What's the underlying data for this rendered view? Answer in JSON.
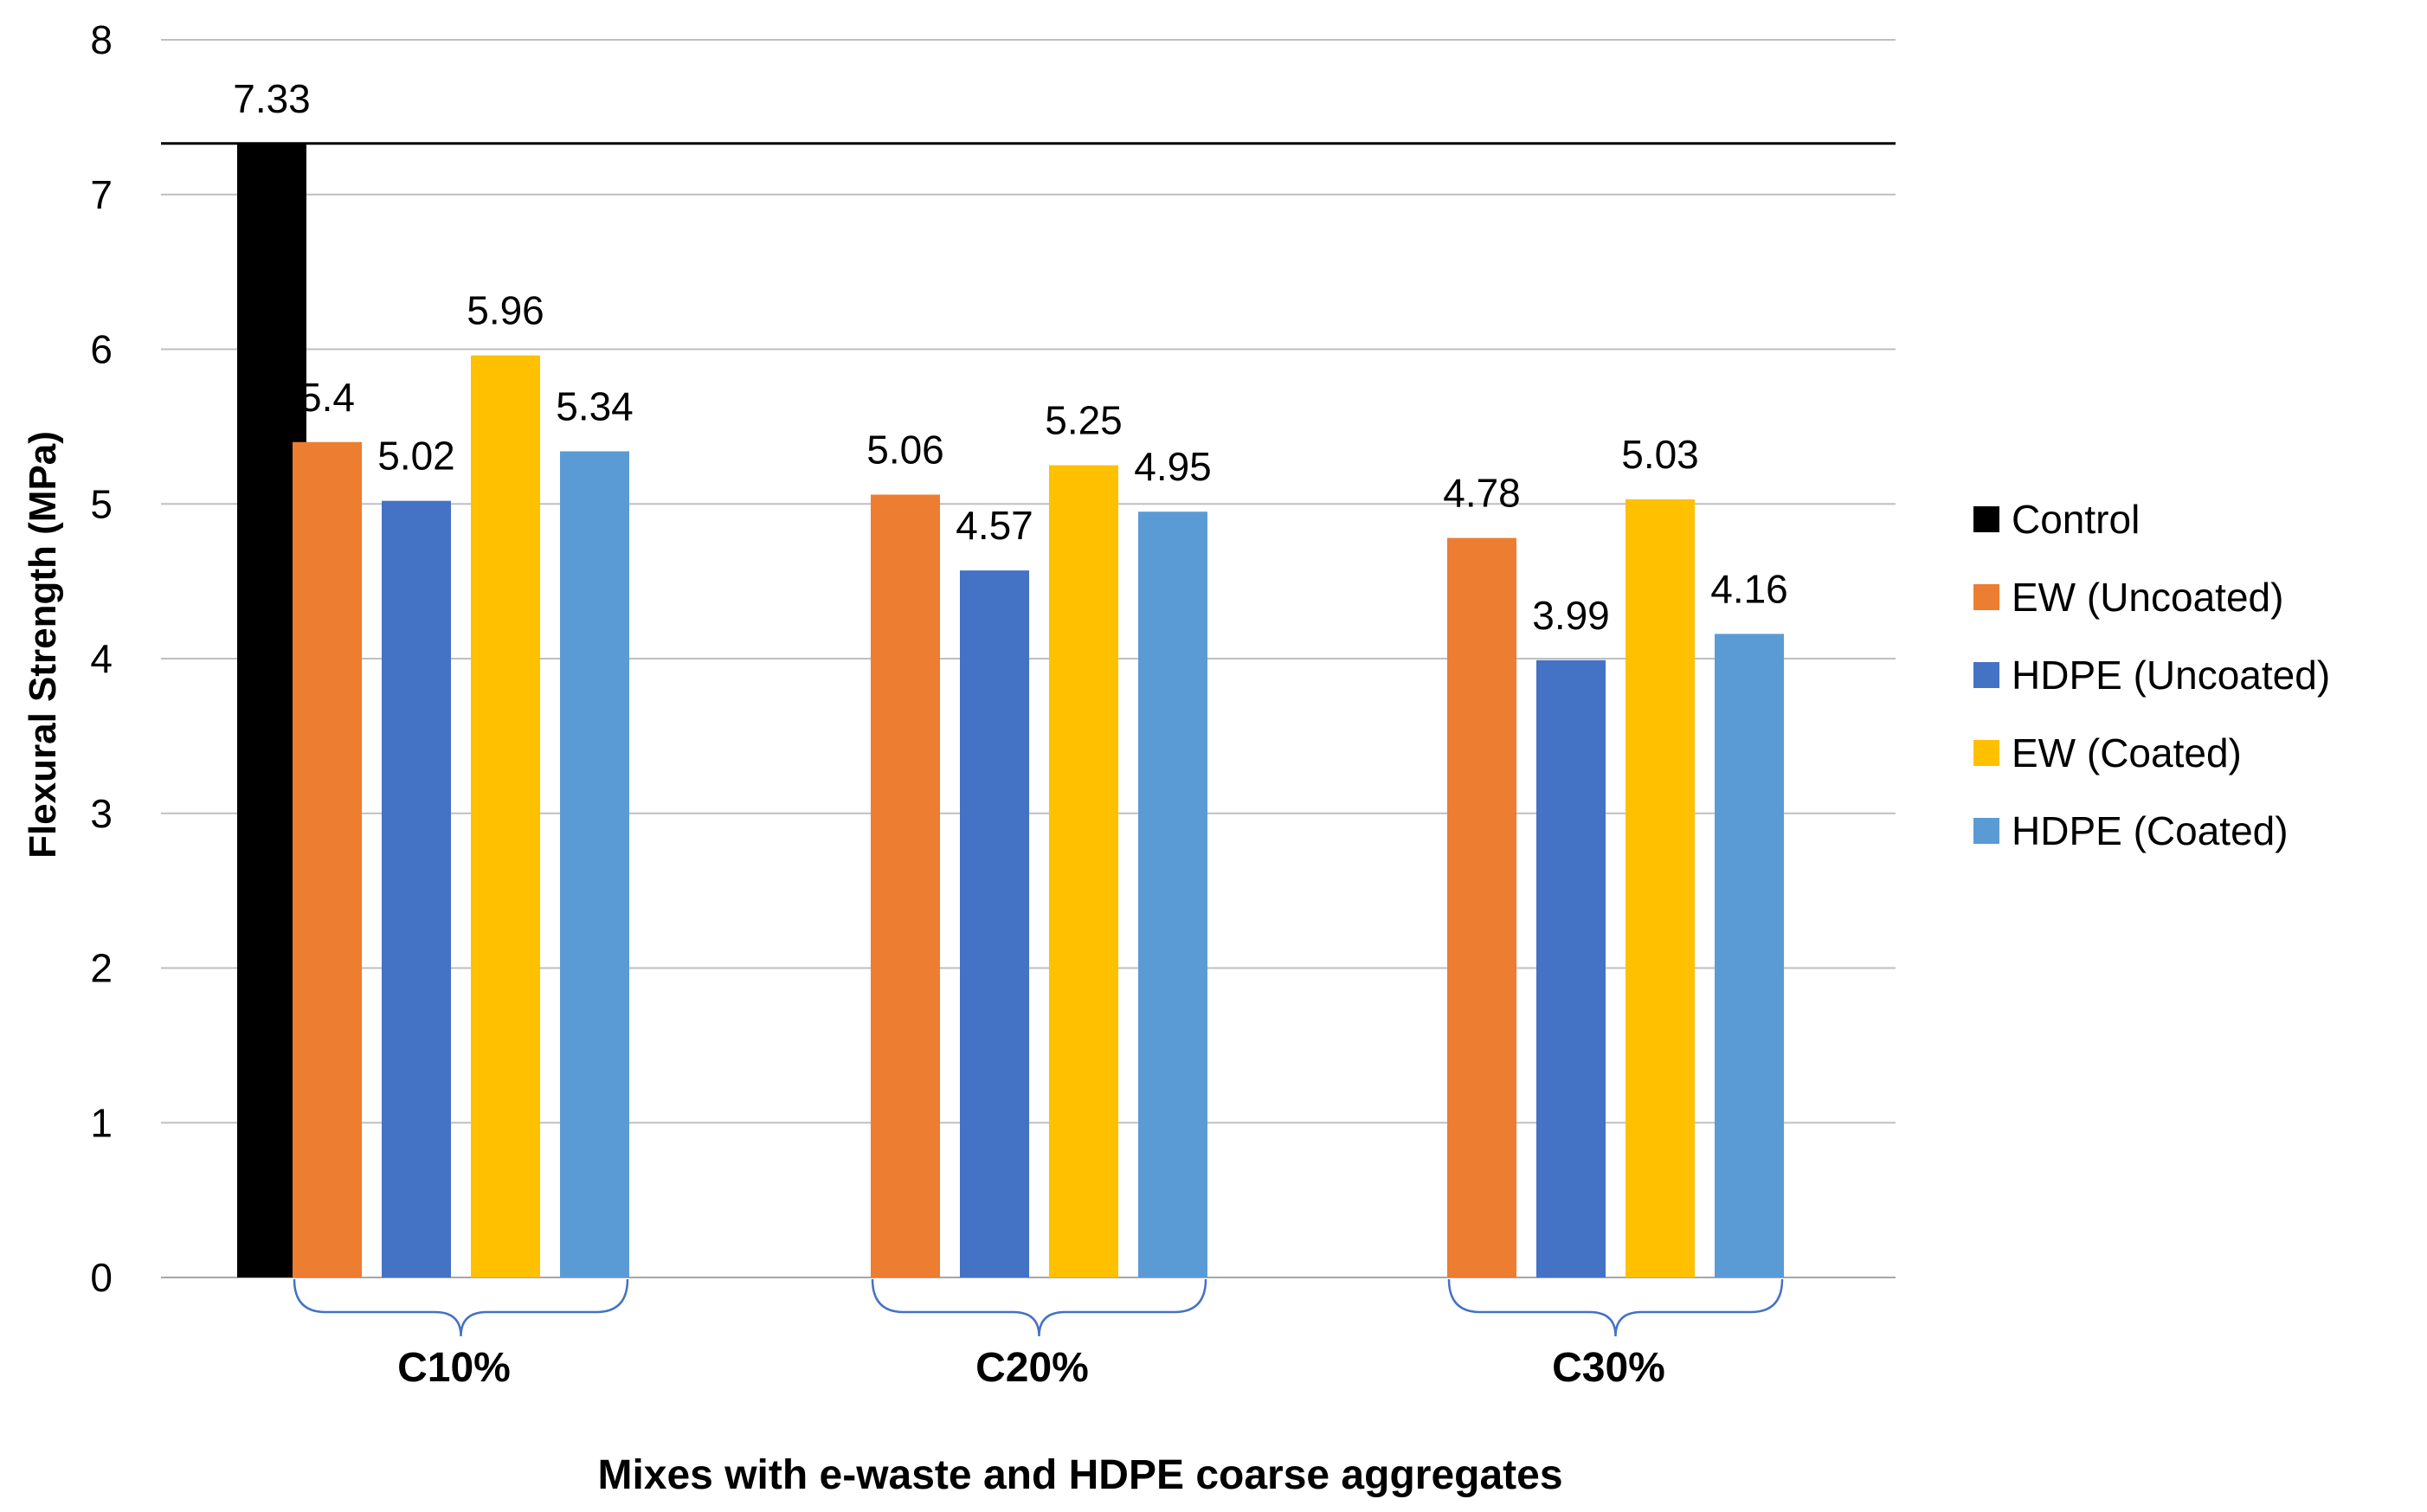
{
  "chart_data": {
    "type": "bar",
    "xlabel": "Mixes with e-waste and HDPE coarse aggregates",
    "ylabel": "Flexural  Strength (MPa)",
    "ylim": [
      0,
      8
    ],
    "yticks": [
      "0",
      "1",
      "2",
      "3",
      "4",
      "5",
      "6",
      "7",
      "8"
    ],
    "grid": true,
    "reference_line": 7.33,
    "legend_position": "right",
    "control": {
      "name": "Control",
      "value": 7.33,
      "label": "7.33",
      "color": "#000000"
    },
    "categories": [
      "C10%",
      "C20%",
      "C30%"
    ],
    "series": [
      {
        "name": "EW (Uncoated)",
        "color": "#ED7D31",
        "values": [
          5.4,
          5.06,
          4.78
        ],
        "labels": [
          "5.4",
          "5.06",
          "4.78"
        ]
      },
      {
        "name": "HDPE (Uncoated)",
        "color": "#4472C4",
        "values": [
          5.02,
          4.57,
          3.99
        ],
        "labels": [
          "5.02",
          "4.57",
          "3.99"
        ]
      },
      {
        "name": "EW (Coated)",
        "color": "#FFC000",
        "values": [
          5.96,
          5.25,
          5.03
        ],
        "labels": [
          "5.96",
          "5.25",
          "5.03"
        ]
      },
      {
        "name": "HDPE (Coated)",
        "color": "#5B9BD5",
        "values": [
          5.34,
          4.95,
          4.16
        ],
        "labels": [
          "5.34",
          "4.95",
          "4.16"
        ]
      }
    ],
    "brace_color": "#4472C4"
  }
}
